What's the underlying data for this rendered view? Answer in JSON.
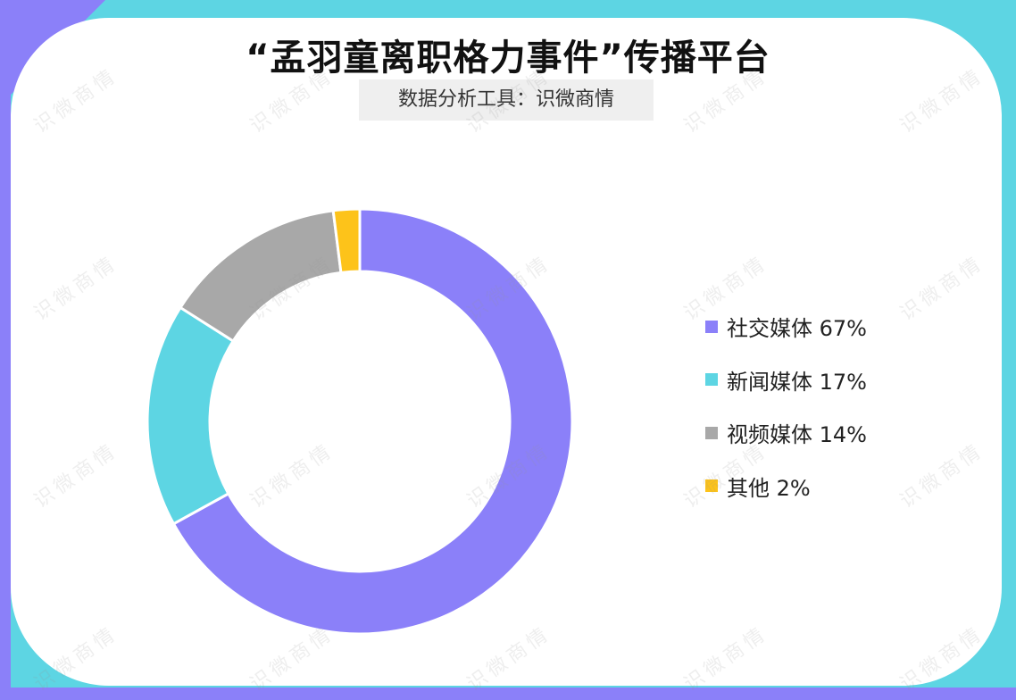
{
  "title": "“孟羽童离职格力事件”传播平台",
  "subtitle": "数据分析工具：识微商情",
  "watermark_text": "识微商情",
  "colors": {
    "page_background": "#5dd5e3",
    "corner_accent": "#8b80f9",
    "card": "#ffffff"
  },
  "chart_data": {
    "type": "pie",
    "style": "donut",
    "title": "“孟羽童离职格力事件”传播平台",
    "legend_position": "right",
    "slices": [
      {
        "label": "社交媒体",
        "value": 67,
        "display": "社交媒体 67%",
        "color": "#8b80f9"
      },
      {
        "label": "新闻媒体",
        "value": 17,
        "display": "新闻媒体 17%",
        "color": "#5dd5e3"
      },
      {
        "label": "视频媒体",
        "value": 14,
        "display": "视频媒体 14%",
        "color": "#a8a8a8"
      },
      {
        "label": "其他",
        "value": 2,
        "display": "其他 2%",
        "color": "#fdc31a"
      }
    ]
  }
}
